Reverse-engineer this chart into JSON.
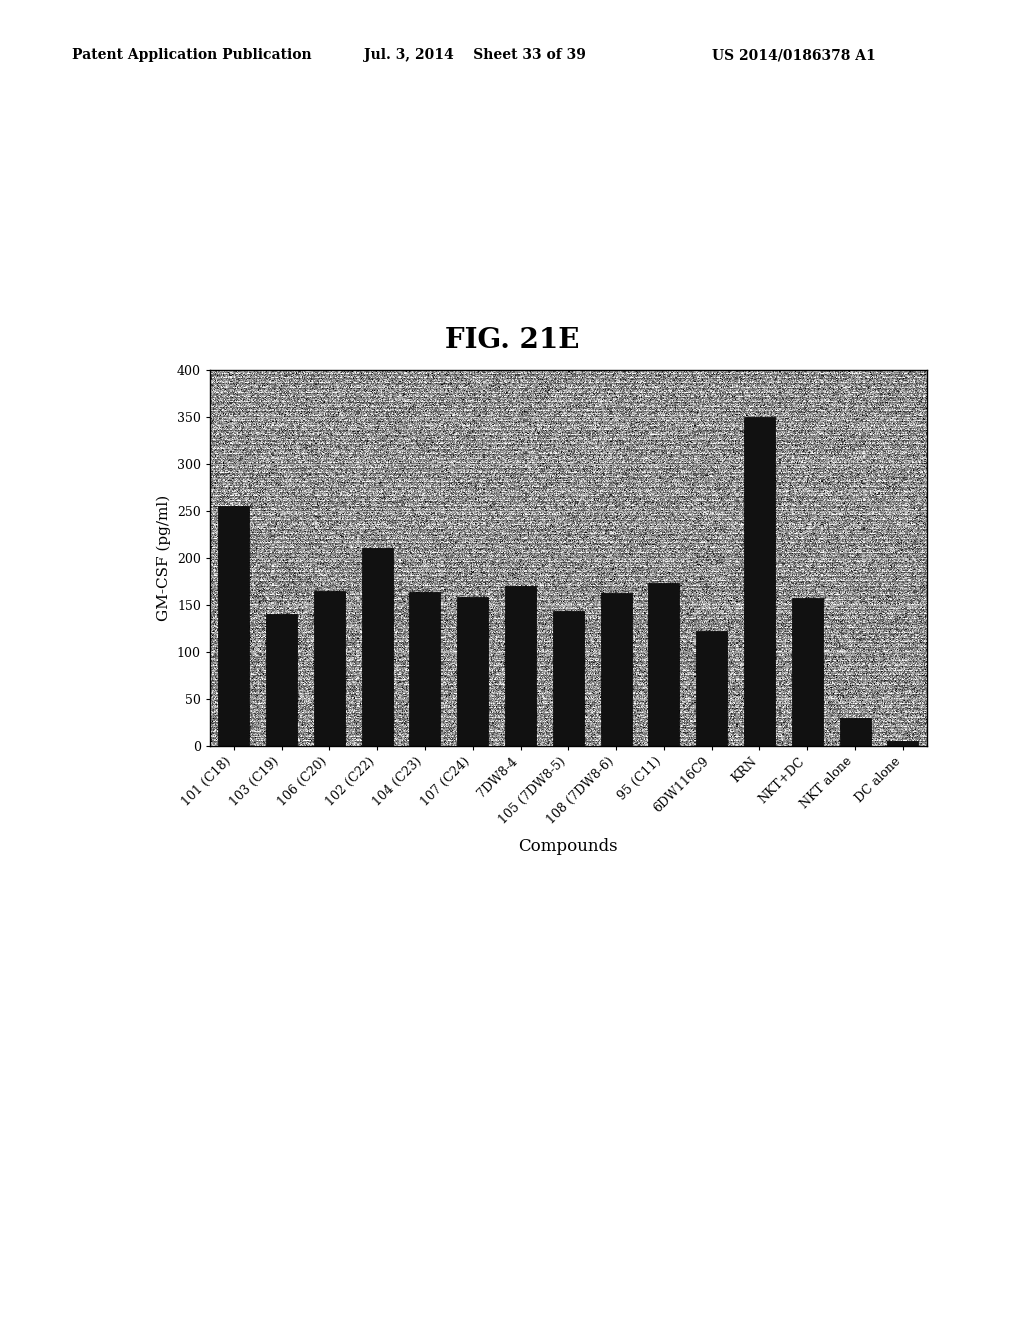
{
  "title": "FIG. 21E",
  "header_left": "Patent Application Publication",
  "header_center": "Jul. 3, 2014    Sheet 33 of 39",
  "header_right": "US 2014/0186378 A1",
  "ylabel": "GM-CSF (pg/ml)",
  "xlabel": "Compounds",
  "ylim": [
    0,
    400
  ],
  "yticks": [
    0,
    50,
    100,
    150,
    200,
    250,
    300,
    350,
    400
  ],
  "categories": [
    "101 (C18)",
    "103 (C19)",
    "106 (C20)",
    "102 (C22)",
    "104 (C23)",
    "107 (C24)",
    "7DW8-4",
    "105 (7DW8-5)",
    "108 (7DW8-6)",
    "95 (C11)",
    "6DW116C9",
    "KRN",
    "NKT+DC",
    "NKT alone",
    "DC alone"
  ],
  "values": [
    255,
    140,
    165,
    210,
    163,
    158,
    170,
    143,
    162,
    173,
    122,
    350,
    157,
    30,
    5
  ],
  "bar_color": "#111111",
  "title_fontsize": 20,
  "axis_fontsize": 11,
  "tick_fontsize": 9,
  "header_fontsize": 10,
  "noise_seed": 42,
  "noise_mean": 0.62,
  "noise_std": 0.22,
  "stripe_period": 5,
  "stripe_dark": 0.45,
  "stripe_light": 0.72
}
